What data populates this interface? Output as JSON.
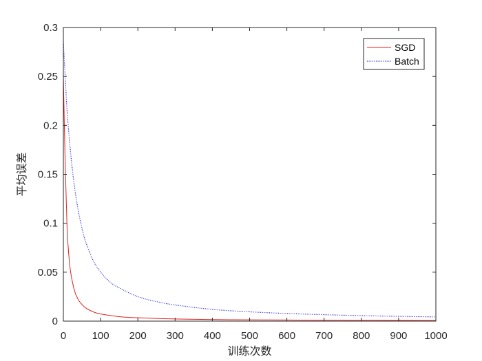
{
  "chart_data": {
    "type": "line",
    "title": "",
    "xlabel": "训练次数",
    "ylabel": "平均误差",
    "xlim": [
      0,
      1000
    ],
    "ylim": [
      0,
      0.3
    ],
    "x_ticks": [
      "0",
      "100",
      "200",
      "300",
      "400",
      "500",
      "600",
      "700",
      "800",
      "900",
      "1000"
    ],
    "y_ticks": [
      "0",
      "0.05",
      "0.1",
      "0.15",
      "0.2",
      "0.25",
      "0.3"
    ],
    "grid": false,
    "legend_position": "top-right",
    "series": [
      {
        "name": "SGD",
        "color": "#e0201b",
        "line_style": "solid",
        "x": [
          0,
          5,
          10,
          15,
          20,
          30,
          40,
          50,
          60,
          80,
          100,
          150,
          200,
          300,
          400,
          500,
          600,
          700,
          800,
          900,
          1000
        ],
        "y": [
          0.25,
          0.16,
          0.095,
          0.066,
          0.049,
          0.031,
          0.022,
          0.017,
          0.0135,
          0.0095,
          0.0073,
          0.0046,
          0.0034,
          0.0022,
          0.0016,
          0.0013,
          0.0011,
          0.0009,
          0.0008,
          0.0007,
          0.0006
        ]
      },
      {
        "name": "Batch",
        "color": "#1f1fd6",
        "line_style": "dotted",
        "x": [
          0,
          5,
          10,
          20,
          30,
          40,
          50,
          60,
          80,
          100,
          125,
          150,
          200,
          250,
          300,
          400,
          500,
          600,
          700,
          800,
          900,
          1000
        ],
        "y": [
          0.285,
          0.25,
          0.215,
          0.17,
          0.137,
          0.113,
          0.095,
          0.081,
          0.062,
          0.05,
          0.04,
          0.034,
          0.025,
          0.02,
          0.0165,
          0.012,
          0.0095,
          0.0078,
          0.0066,
          0.0056,
          0.0049,
          0.0043
        ]
      }
    ]
  }
}
